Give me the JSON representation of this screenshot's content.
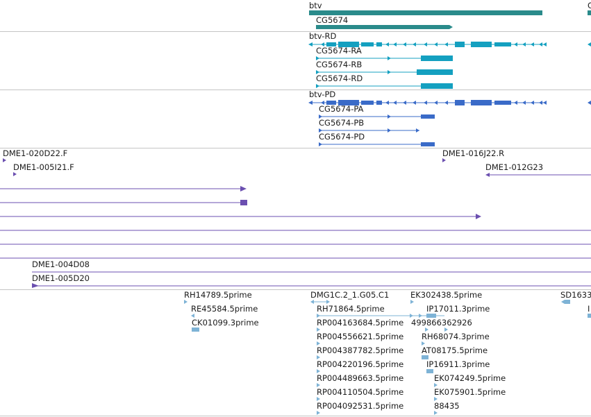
{
  "colors": {
    "gene": "#2a8b8b",
    "transcript": "#14a0c0",
    "protein": "#3a6bc8",
    "clone": "#6b4fb0",
    "est": "#7eb3d6",
    "separator": "#c4c4c4"
  },
  "tracks": {
    "genes": {
      "labels": [
        "btv",
        "CG5674",
        "C"
      ]
    },
    "transcripts": {
      "labels": [
        "btv-RD",
        "CG5674-RA",
        "CG5674-RB",
        "CG5674-RD"
      ]
    },
    "proteins": {
      "labels": [
        "btv-PD",
        "CG5674-PA",
        "CG5674-PB",
        "CG5674-PD"
      ]
    },
    "clones": {
      "labels": [
        "DME1-020D22.F",
        "DME1-005I21.F",
        "DME1-016J22.R",
        "DME1-012G23",
        "DME1-004D08",
        "DME1-005D20"
      ]
    },
    "ests": {
      "labels": [
        "RH14789.5prime",
        "RE45584.5prime",
        "CK01099.3prime",
        "DMG1C.2_1.G05.C1",
        "RH71864.5prime",
        "RP004163684.5prime",
        "RP004556621.5prime",
        "RP004387782.5prime",
        "RP004220196.5prime",
        "RP004489663.5prime",
        "RP004110504.5prime",
        "RP004092531.5prime",
        "EK302438.5prime",
        "IP17011.3prime",
        "499866362926",
        "RH68074.3prime",
        "AT08175.5prime",
        "IP16911.3prime",
        "EK074249.5prime",
        "EK075901.5prime",
        "88435",
        "SD1633",
        "I"
      ]
    }
  }
}
